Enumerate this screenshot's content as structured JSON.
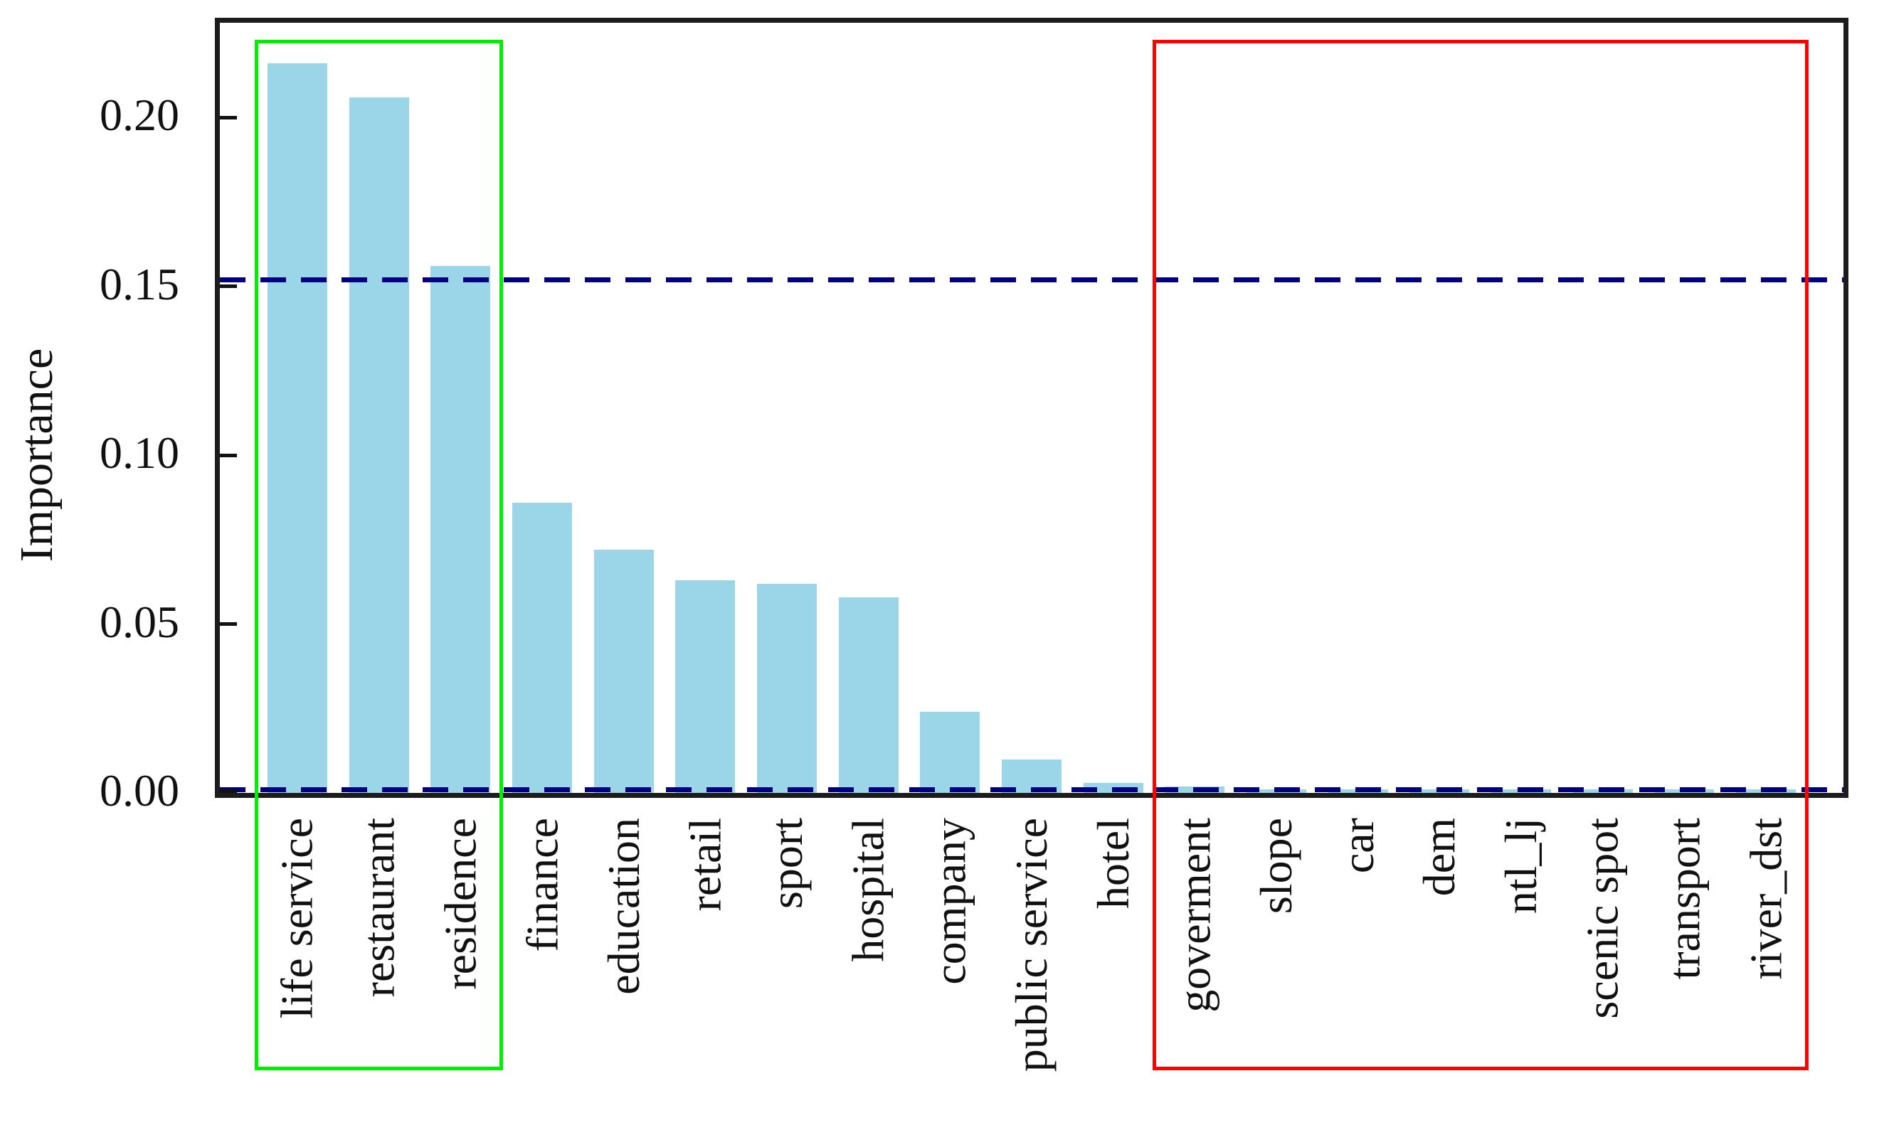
{
  "chart_data": {
    "type": "bar",
    "title": "",
    "xlabel": "",
    "ylabel": "Importance",
    "ylim": [
      0,
      0.228
    ],
    "grid": false,
    "legend": null,
    "bar_color": "#9ad6e8",
    "frame_color": "#1c1c1c",
    "yticks": [
      {
        "value": 0.0,
        "label": "0.00"
      },
      {
        "value": 0.05,
        "label": "0.05"
      },
      {
        "value": 0.1,
        "label": "0.10"
      },
      {
        "value": 0.15,
        "label": "0.15"
      },
      {
        "value": 0.2,
        "label": "0.20"
      }
    ],
    "categories": [
      "life service",
      "restaurant",
      "residence",
      "finance",
      "education",
      "retail",
      "sport",
      "hospital",
      "company",
      "public service",
      "hotel",
      "goverment",
      "slope",
      "car",
      "dem",
      "ntl_lj",
      "scenic spot",
      "transport",
      "river_dst"
    ],
    "values": [
      0.216,
      0.206,
      0.156,
      0.086,
      0.072,
      0.063,
      0.062,
      0.058,
      0.024,
      0.01,
      0.003,
      0.002,
      0.001,
      0.001,
      0.001,
      0.001,
      0.001,
      0.001,
      0.001
    ],
    "reference_lines": [
      {
        "value": 0.152,
        "style": "dashed",
        "color": "#000080"
      },
      {
        "value": 0.001,
        "style": "dashed",
        "color": "#000080"
      }
    ],
    "highlight_boxes": [
      {
        "from_index": 0,
        "to_index": 2,
        "color": "#00ee00",
        "from_category": "life service",
        "to_category": "residence"
      },
      {
        "from_index": 11,
        "to_index": 18,
        "color": "#ff0000",
        "from_category": "goverment",
        "to_category": "river_dst"
      }
    ]
  }
}
